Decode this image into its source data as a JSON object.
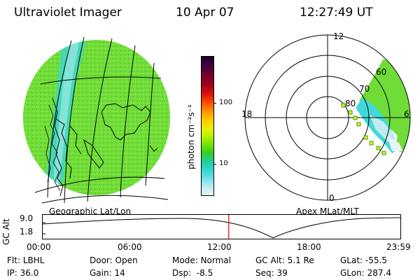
{
  "header": {
    "title": "Ultraviolet Imager",
    "date": "10 Apr 07",
    "time": "12:27:49 UT"
  },
  "map_panel": {
    "caption": "Geographic Lat/Lon"
  },
  "polar_panel": {
    "caption": "Apex MLat/MLT",
    "mlt_labels": {
      "top": "12",
      "left": "18",
      "right": "6",
      "bottom": "0"
    },
    "lat_labels": [
      "60",
      "70",
      "80"
    ]
  },
  "colorbar": {
    "unit_label": "photon cm⁻²s⁻¹",
    "ticks": [
      "100",
      "10"
    ],
    "colors": [
      "#1a0022",
      "#3a0040",
      "#6a0030",
      "#a00018",
      "#d81010",
      "#ff4a00",
      "#ff9a00",
      "#ffcc00",
      "#e8f000",
      "#b0f000",
      "#6ee000",
      "#30cc30",
      "#22d0a0",
      "#30d8d0",
      "#70e0e8",
      "#c0ecf0",
      "#e8f4f8"
    ]
  },
  "altitude_strip": {
    "axis_label": "GC Alt",
    "y_ticks": [
      "9.0",
      "1.8"
    ],
    "x_ticks": [
      "00:00",
      "06:00",
      "12:00",
      "18:00",
      "23:59"
    ],
    "current_fraction": 0.52
  },
  "info": {
    "flt": {
      "label": "Flt:",
      "value": "LBHL"
    },
    "ip": {
      "label": "IP:",
      "value": "36.0"
    },
    "door": {
      "label": "Door:",
      "value": "Open"
    },
    "gain": {
      "label": "Gain:",
      "value": "14"
    },
    "mode": {
      "label": "Mode:",
      "value": "Normal"
    },
    "dsp": {
      "label": "Dsp:",
      "value": "-8.5"
    },
    "gcalt": {
      "label": "GC Alt:",
      "value": "5.1 Re"
    },
    "seq": {
      "label": "Seq:",
      "value": "39"
    },
    "glat": {
      "label": "GLat:",
      "value": "-55.5"
    },
    "glon": {
      "label": "GLon:",
      "value": "287.4"
    }
  },
  "colors": {
    "accent_line": "#e00000",
    "green": "#7ee03a",
    "cyan": "#40d8d8"
  }
}
